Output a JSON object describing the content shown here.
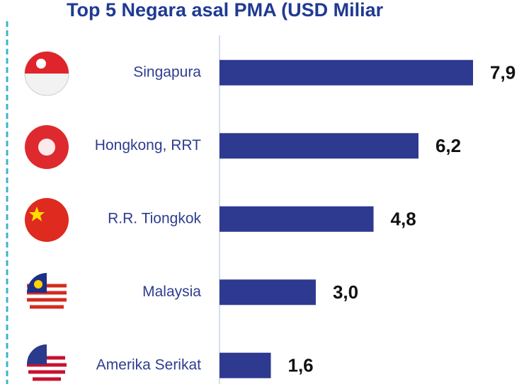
{
  "chart_data": {
    "type": "bar",
    "orientation": "horizontal",
    "title": "Top 5 Negara asal PMA (USD Miliar",
    "categories": [
      "Singapura",
      "Hongkong, RRT",
      "R.R. Tiongkok",
      "Malaysia",
      "Amerika Serikat"
    ],
    "values": [
      7.9,
      6.2,
      4.8,
      3.0,
      1.6
    ],
    "value_labels": [
      "7,9",
      "6,2",
      "4,8",
      "3,0",
      "1,6"
    ],
    "color": "#2e3990",
    "xlim": [
      0,
      9.4
    ]
  }
}
